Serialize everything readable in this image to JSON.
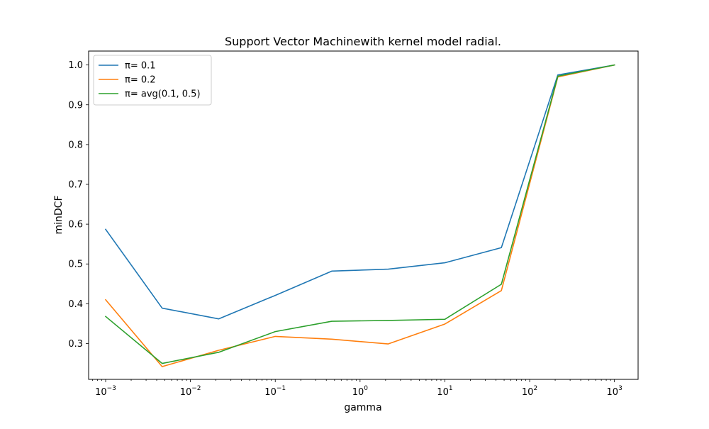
{
  "chart_data": {
    "type": "line",
    "title": "Support Vector Machinewith kernel model radial.",
    "xlabel": "gamma",
    "ylabel": "minDCF",
    "xscale": "log",
    "xlim": [
      0.00063,
      1900
    ],
    "ylim": [
      0.21,
      1.035
    ],
    "grid": false,
    "legend_position": "top-left",
    "x": [
      0.001,
      0.00464,
      0.0215,
      0.1,
      0.464,
      2.15,
      10,
      46.4,
      215,
      1000
    ],
    "x_ticks": [
      {
        "value": 0.001,
        "base": "10",
        "exp": "−3"
      },
      {
        "value": 0.01,
        "base": "10",
        "exp": "−2"
      },
      {
        "value": 0.1,
        "base": "10",
        "exp": "−1"
      },
      {
        "value": 1,
        "base": "10",
        "exp": "0"
      },
      {
        "value": 10,
        "base": "10",
        "exp": "1"
      },
      {
        "value": 100,
        "base": "10",
        "exp": "2"
      },
      {
        "value": 1000,
        "base": "10",
        "exp": "3"
      }
    ],
    "y_ticks": [
      {
        "value": 0.3,
        "label": "0.3"
      },
      {
        "value": 0.4,
        "label": "0.4"
      },
      {
        "value": 0.5,
        "label": "0.5"
      },
      {
        "value": 0.6,
        "label": "0.6"
      },
      {
        "value": 0.7,
        "label": "0.7"
      },
      {
        "value": 0.8,
        "label": "0.8"
      },
      {
        "value": 0.9,
        "label": "0.9"
      },
      {
        "value": 1.0,
        "label": "1.0"
      }
    ],
    "series": [
      {
        "name": "π= 0.1",
        "color": "#1f77b4",
        "values": [
          0.587,
          0.389,
          0.362,
          0.421,
          0.482,
          0.487,
          0.503,
          0.541,
          0.975,
          1.0
        ]
      },
      {
        "name": "π= 0.2",
        "color": "#ff7f0e",
        "values": [
          0.41,
          0.242,
          0.283,
          0.318,
          0.311,
          0.299,
          0.349,
          0.433,
          0.97,
          1.0
        ]
      },
      {
        "name": "π= avg(0.1, 0.5)",
        "color": "#2ca02c",
        "values": [
          0.368,
          0.25,
          0.278,
          0.33,
          0.356,
          0.358,
          0.361,
          0.449,
          0.972,
          1.0
        ]
      }
    ]
  }
}
